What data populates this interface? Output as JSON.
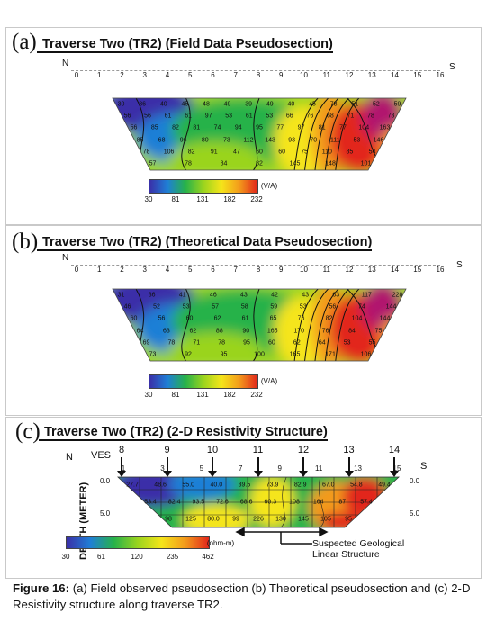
{
  "panels": [
    {
      "id": "a",
      "letter": "(a)",
      "title": "Traverse Two (TR2) (Field Data Pseudosection)",
      "north": "N",
      "south": "S",
      "axis_numbers": [
        "0",
        "1",
        "2",
        "3",
        "4",
        "5",
        "6",
        "7",
        "8",
        "9",
        "10",
        "11",
        "12",
        "13",
        "14",
        "15",
        "16"
      ],
      "colorbar_ticks": [
        "30",
        "81",
        "131",
        "182",
        "232"
      ],
      "colorbar_unit": "(V/A)",
      "values": [
        "30",
        "36",
        "40",
        "45",
        "48",
        "49",
        "39",
        "49",
        "40",
        "45",
        "78",
        "51",
        "52",
        "59",
        "56",
        "56",
        "61",
        "61",
        "97",
        "53",
        "61",
        "53",
        "66",
        "76",
        "68",
        "71",
        "78",
        "73",
        "56",
        "85",
        "82",
        "81",
        "74",
        "94",
        "95",
        "77",
        "97",
        "81",
        "77",
        "104",
        "163",
        "85",
        "68",
        "96",
        "80",
        "73",
        "112",
        "143",
        "93",
        "70",
        "111",
        "53",
        "146",
        "78",
        "106",
        "82",
        "91",
        "47",
        "60",
        "60",
        "75",
        "110",
        "85",
        "54",
        "57",
        "78",
        "84",
        "82",
        "145",
        "148",
        "101"
      ]
    },
    {
      "id": "b",
      "letter": "(b)",
      "title": "Traverse Two (TR2) (Theoretical Data Pseudosection)",
      "north": "N",
      "south": "S",
      "axis_numbers": [
        "0",
        "1",
        "2",
        "3",
        "4",
        "5",
        "6",
        "7",
        "8",
        "9",
        "10",
        "11",
        "12",
        "13",
        "14",
        "15",
        "16"
      ],
      "colorbar_ticks": [
        "30",
        "81",
        "131",
        "182",
        "232"
      ],
      "colorbar_unit": "(V/A)",
      "values": [
        "31",
        "36",
        "41",
        "46",
        "43",
        "42",
        "43",
        "63",
        "117",
        "228",
        "46",
        "52",
        "53",
        "57",
        "58",
        "59",
        "53",
        "56",
        "74",
        "144",
        "60",
        "56",
        "60",
        "62",
        "61",
        "65",
        "76",
        "82",
        "104",
        "144",
        "64",
        "63",
        "62",
        "88",
        "90",
        "165",
        "170",
        "76",
        "84",
        "75",
        "69",
        "78",
        "71",
        "78",
        "95",
        "60",
        "62",
        "64",
        "53",
        "55",
        "73",
        "92",
        "95",
        "100",
        "165",
        "171",
        "106"
      ]
    },
    {
      "id": "c",
      "letter": "(c)",
      "title": "Traverse Two (TR2) (2-D Resistivity Structure)",
      "north": "N",
      "south": "S",
      "ves_label": "VES",
      "ves_numbers": [
        "8",
        "9",
        "10",
        "11",
        "12",
        "13",
        "14"
      ],
      "axis_numbers": [
        "1",
        "3",
        "5",
        "7",
        "9",
        "11",
        "13",
        "15"
      ],
      "depth_label": "DEPTH (METER)",
      "depth_ticks": [
        "0.0",
        "5.0"
      ],
      "colorbar_ticks": [
        "30",
        "61",
        "120",
        "235",
        "462"
      ],
      "colorbar_unit": "(ohm-m)",
      "values": [
        "27.7",
        "48.6",
        "55.0",
        "40.0",
        "39.5",
        "73.9",
        "82.9",
        "67.0",
        "54.8",
        "49.4",
        "53.4",
        "82.4",
        "93.5",
        "72.6",
        "68.6",
        "60.3",
        "108",
        "164",
        "87",
        "57.4",
        "98",
        "125",
        "80.0",
        "99",
        "226",
        "130",
        "145",
        "105",
        "95"
      ],
      "annotation": [
        "Suspected Geological",
        "Linear Structure"
      ]
    }
  ],
  "caption": {
    "label": "Figure 16:",
    "text": " (a) Field observed pseudosection (b) Theoretical pseudosection and (c) 2-D Resistivity structure along traverse TR2."
  },
  "colors": {
    "scale": [
      "#3a2fa8",
      "#1f7fd6",
      "#27b24a",
      "#9ad41e",
      "#f5e51a",
      "#f39a1b",
      "#e2261b",
      "#b1126e"
    ]
  }
}
